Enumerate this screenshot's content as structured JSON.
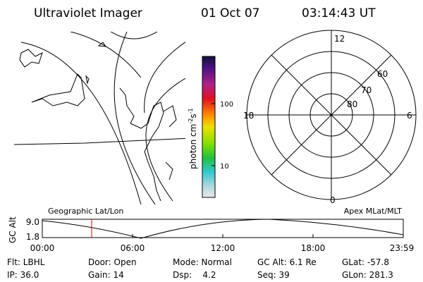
{
  "header": {
    "title": "Ultraviolet Imager",
    "date": "01 Oct 07",
    "time": "03:14:43 UT"
  },
  "colorbar": {
    "unit": {
      "base": "photon cm",
      "exp1": "-2",
      "mid": "s",
      "exp2": "-1"
    },
    "labels": [
      "100",
      "10"
    ]
  },
  "polar": {
    "hours": {
      "top": "12",
      "right": "6",
      "bottom": "0",
      "left": "18"
    },
    "latitudes": [
      "60",
      "70",
      "80"
    ]
  },
  "timeline": {
    "left_title": "Geographic Lat/Lon",
    "right_title": "Apex MLat/MLT",
    "y_label": "GC Alt",
    "y_labels": [
      "9.0",
      "1.8"
    ],
    "x_labels": [
      "00:00",
      "06:00",
      "12:00",
      "18:00",
      "23:59"
    ]
  },
  "footer": {
    "rows": [
      [
        "Flt: LBHL",
        "Door: Open",
        "Mode: Normal",
        "GC Alt: 6.1 Re",
        "GLat: -57.8"
      ],
      [
        "IP: 36.0",
        "Gain: 14",
        "Dsp:    4.2",
        "Seq: 39",
        "GLon: 281.3"
      ]
    ]
  }
}
